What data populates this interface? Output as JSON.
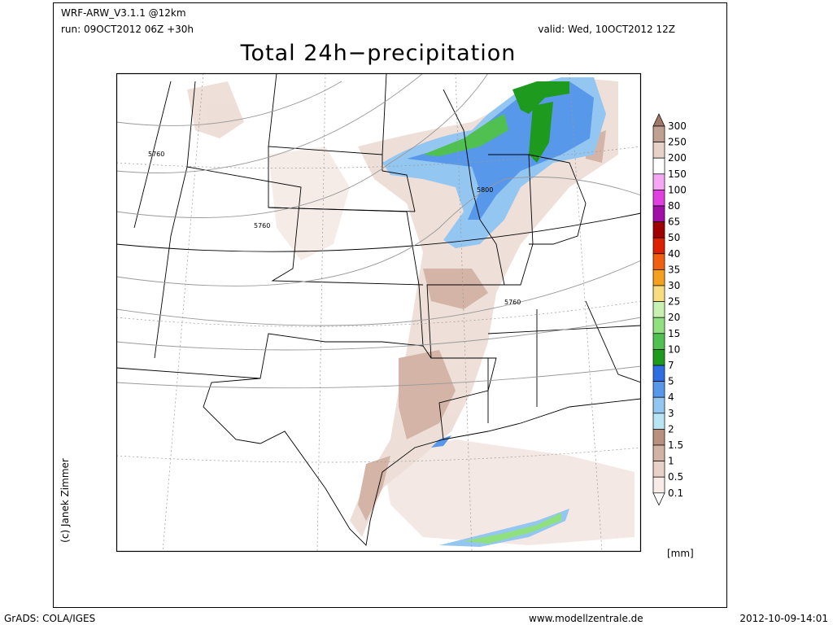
{
  "header": {
    "model": "WRF-ARW_V3.1.1 @12km",
    "run": "run: 09OCT2012 06Z +30h",
    "valid": "valid: Wed, 10OCT2012 12Z",
    "title": "Total 24h−precipitation"
  },
  "contour_labels": [
    "5760",
    "5760",
    "5800",
    "5760"
  ],
  "legend": {
    "labels": [
      "300",
      "250",
      "200",
      "150",
      "100",
      "80",
      "65",
      "50",
      "40",
      "35",
      "30",
      "25",
      "20",
      "15",
      "10",
      "7",
      "5",
      "4",
      "3",
      "2",
      "1.5",
      "1",
      "0.5",
      "0.1"
    ],
    "colors": [
      "#a07868",
      "#c0a090",
      "#e6d2c8",
      "#ffffff",
      "#f4a8f4",
      "#e040e0",
      "#a010a8",
      "#a00000",
      "#dc2000",
      "#f06010",
      "#f4a020",
      "#f8dc80",
      "#c8f0b0",
      "#90e080",
      "#50c050",
      "#1e9a1e",
      "#2e6ee0",
      "#5898ea",
      "#94c6f2",
      "#b8e4f4",
      "#b89080",
      "#d2b2a2",
      "#e8d2c8",
      "#f8ece8",
      "#ffffff"
    ],
    "unit": "[mm]"
  },
  "footer": {
    "author": "(c) Janek Zimmer",
    "software": "GrADS: COLA/IGES",
    "site": "www.modellzentrale.de",
    "timestamp": "2012-10-09-14:01"
  }
}
